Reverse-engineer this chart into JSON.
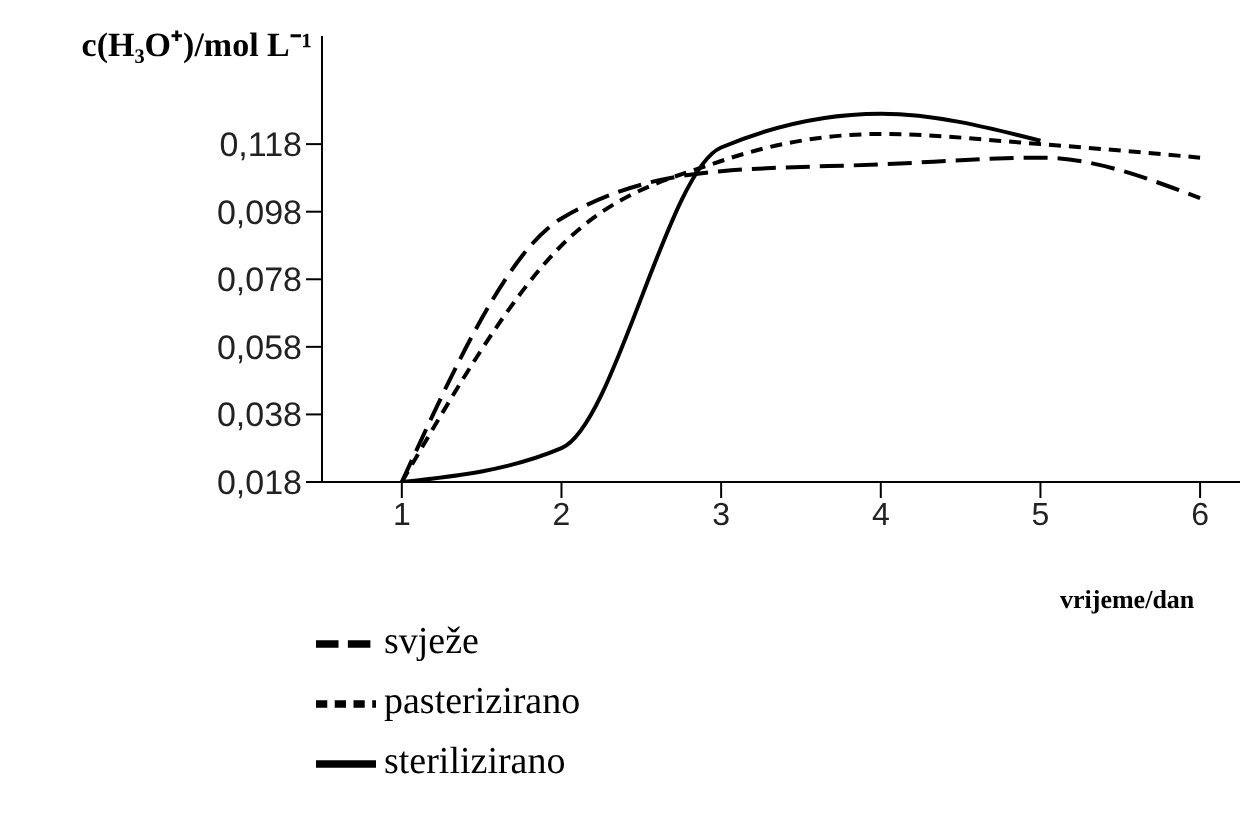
{
  "chart_data": {
    "type": "line",
    "ylabel": "c(H₃O⁺)/mol L⁻¹",
    "xlabel": "vrijeme/dan",
    "x": [
      1,
      2,
      3,
      4,
      5,
      6
    ],
    "series": [
      {
        "name": "svježe",
        "color": "#000000",
        "line_style": "dashed",
        "values": [
          0.018,
          0.096,
          0.11,
          0.112,
          0.114,
          0.102
        ]
      },
      {
        "name": "pasterizirano",
        "color": "#000000",
        "line_style": "dotted",
        "values": [
          0.018,
          0.088,
          0.113,
          0.121,
          0.118,
          0.114
        ]
      },
      {
        "name": "sterilizirano",
        "color": "#000000",
        "line_style": "solid",
        "values": [
          0.018,
          0.028,
          0.117,
          0.127,
          0.119,
          null
        ]
      }
    ],
    "xlim": [
      0.5,
      6.25
    ],
    "xticks": [
      1,
      2,
      3,
      4,
      5,
      6
    ],
    "ylim": [
      0.018,
      0.15
    ],
    "yticks": [
      {
        "value": 0.018,
        "label": "0,018"
      },
      {
        "value": 0.038,
        "label": "0,038"
      },
      {
        "value": 0.058,
        "label": "0,058"
      },
      {
        "value": 0.078,
        "label": "0,078"
      },
      {
        "value": 0.098,
        "label": "0,098"
      },
      {
        "value": 0.118,
        "label": "0,118"
      }
    ],
    "grid": false,
    "legend": "bottom",
    "marker": "none"
  }
}
